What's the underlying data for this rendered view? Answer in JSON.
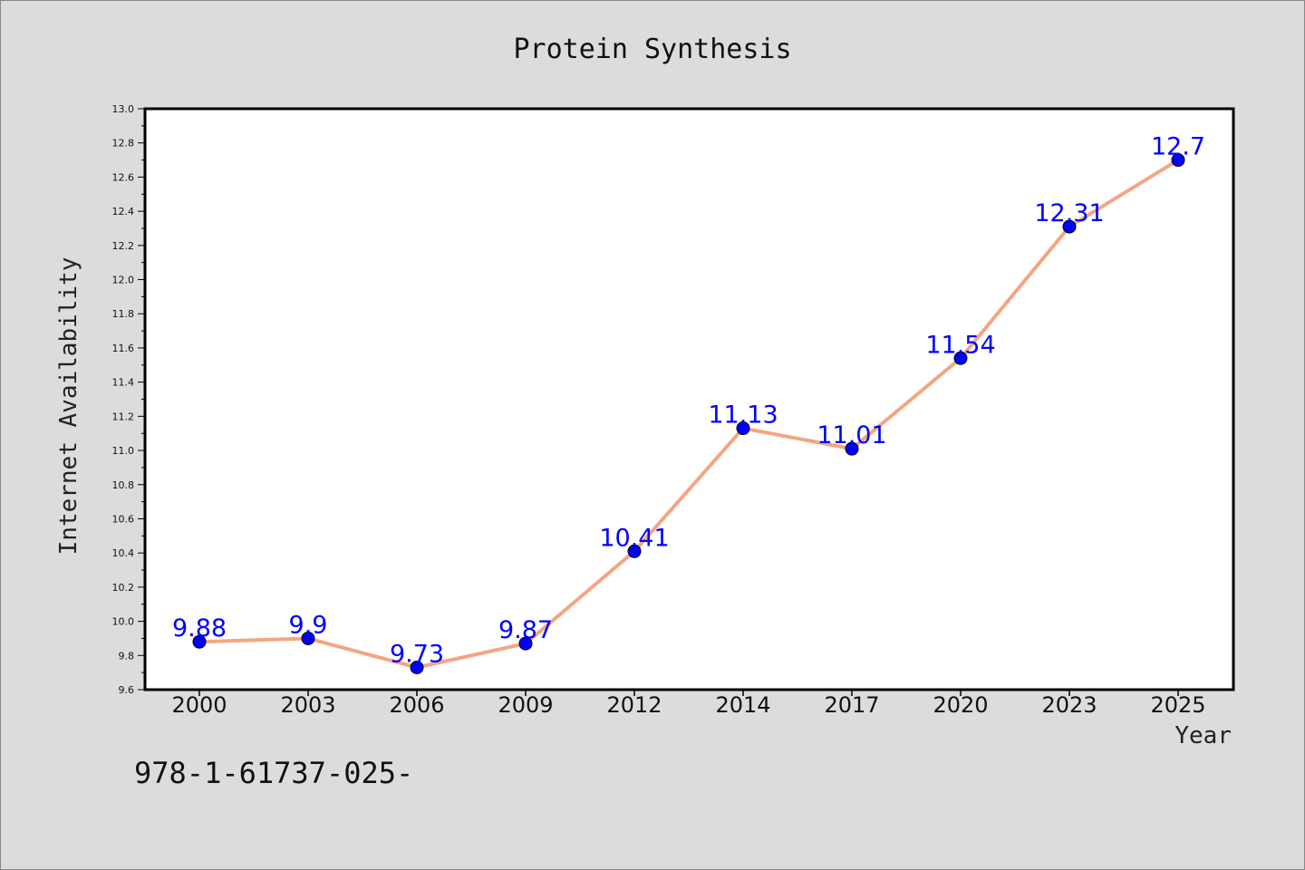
{
  "chart_data": {
    "type": "line",
    "title": "Protein Synthesis",
    "xlabel": "Year",
    "ylabel": "Internet Availability",
    "categories": [
      "2000",
      "2003",
      "2006",
      "2009",
      "2012",
      "2014",
      "2017",
      "2020",
      "2023",
      "2025"
    ],
    "series": [
      {
        "values": [
          9.88,
          9.9,
          9.73,
          9.87,
          10.41,
          11.13,
          11.01,
          11.54,
          12.31,
          12.7
        ],
        "labels": [
          "9.88",
          "9.9",
          "9.73",
          "9.87",
          "10.41",
          "11.13",
          "11.01",
          "11.54",
          "12.31",
          "12.7"
        ],
        "line_color": "#f4a582",
        "marker_color": "#0000ff",
        "label_color": "#0000ff"
      }
    ],
    "ylim": [
      9.6,
      13.0
    ],
    "yticks": [
      "9.6",
      "9.8",
      "10.0",
      "10.2",
      "10.4",
      "10.6",
      "10.8",
      "11.0",
      "11.2",
      "11.4",
      "11.6",
      "11.8",
      "12.0",
      "12.2",
      "12.4",
      "12.6",
      "12.8",
      "13.0"
    ],
    "grid": false,
    "legend": "none",
    "background": "#dcdcdc",
    "plot_background": "#ffffff"
  },
  "footnote": "978-1-61737-025-"
}
